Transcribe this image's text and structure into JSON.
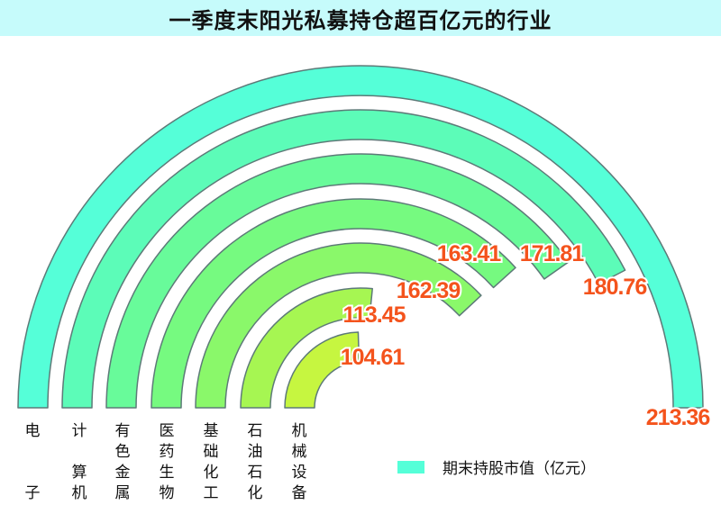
{
  "title": "一季度末阳光私募持仓超百亿元的行业",
  "legend": {
    "label": "期末持股市值（亿元）",
    "color": "#55ffd8"
  },
  "chart_data": {
    "type": "radial-bar",
    "title": "一季度末阳光私募持仓超百亿元的行业",
    "unit": "亿元",
    "categories": [
      "电子",
      "计算机",
      "有色金属",
      "医药生物",
      "基础化工",
      "石油石化",
      "机械设备"
    ],
    "values": [
      213.36,
      180.76,
      171.81,
      163.41,
      162.39,
      113.45,
      104.61
    ],
    "value_labels": [
      "213.36",
      "180.76",
      "171.81",
      "163.41",
      "162.39",
      "113.45",
      "104.61"
    ],
    "series": [
      {
        "name": "期末持股市值（亿元）",
        "values": [
          213.36,
          180.76,
          171.81,
          163.41,
          162.39,
          113.45,
          104.61
        ]
      }
    ],
    "colors": [
      "#55ffd8",
      "#5cfcb8",
      "#68fb9a",
      "#76fa80",
      "#8af86a",
      "#a6f652",
      "#c6f640"
    ],
    "label_color": "#f4531c",
    "max_angle_deg": 180,
    "legend_position": "bottom-right"
  },
  "category_labels": [
    [
      "电",
      "",
      "",
      "子"
    ],
    [
      "计",
      "",
      "算",
      "机"
    ],
    [
      "有",
      "色",
      "金",
      "属"
    ],
    [
      "医",
      "药",
      "生",
      "物"
    ],
    [
      "基",
      "础",
      "化",
      "工"
    ],
    [
      "石",
      "油",
      "石",
      "化"
    ],
    [
      "机",
      "械",
      "设",
      "备"
    ]
  ]
}
